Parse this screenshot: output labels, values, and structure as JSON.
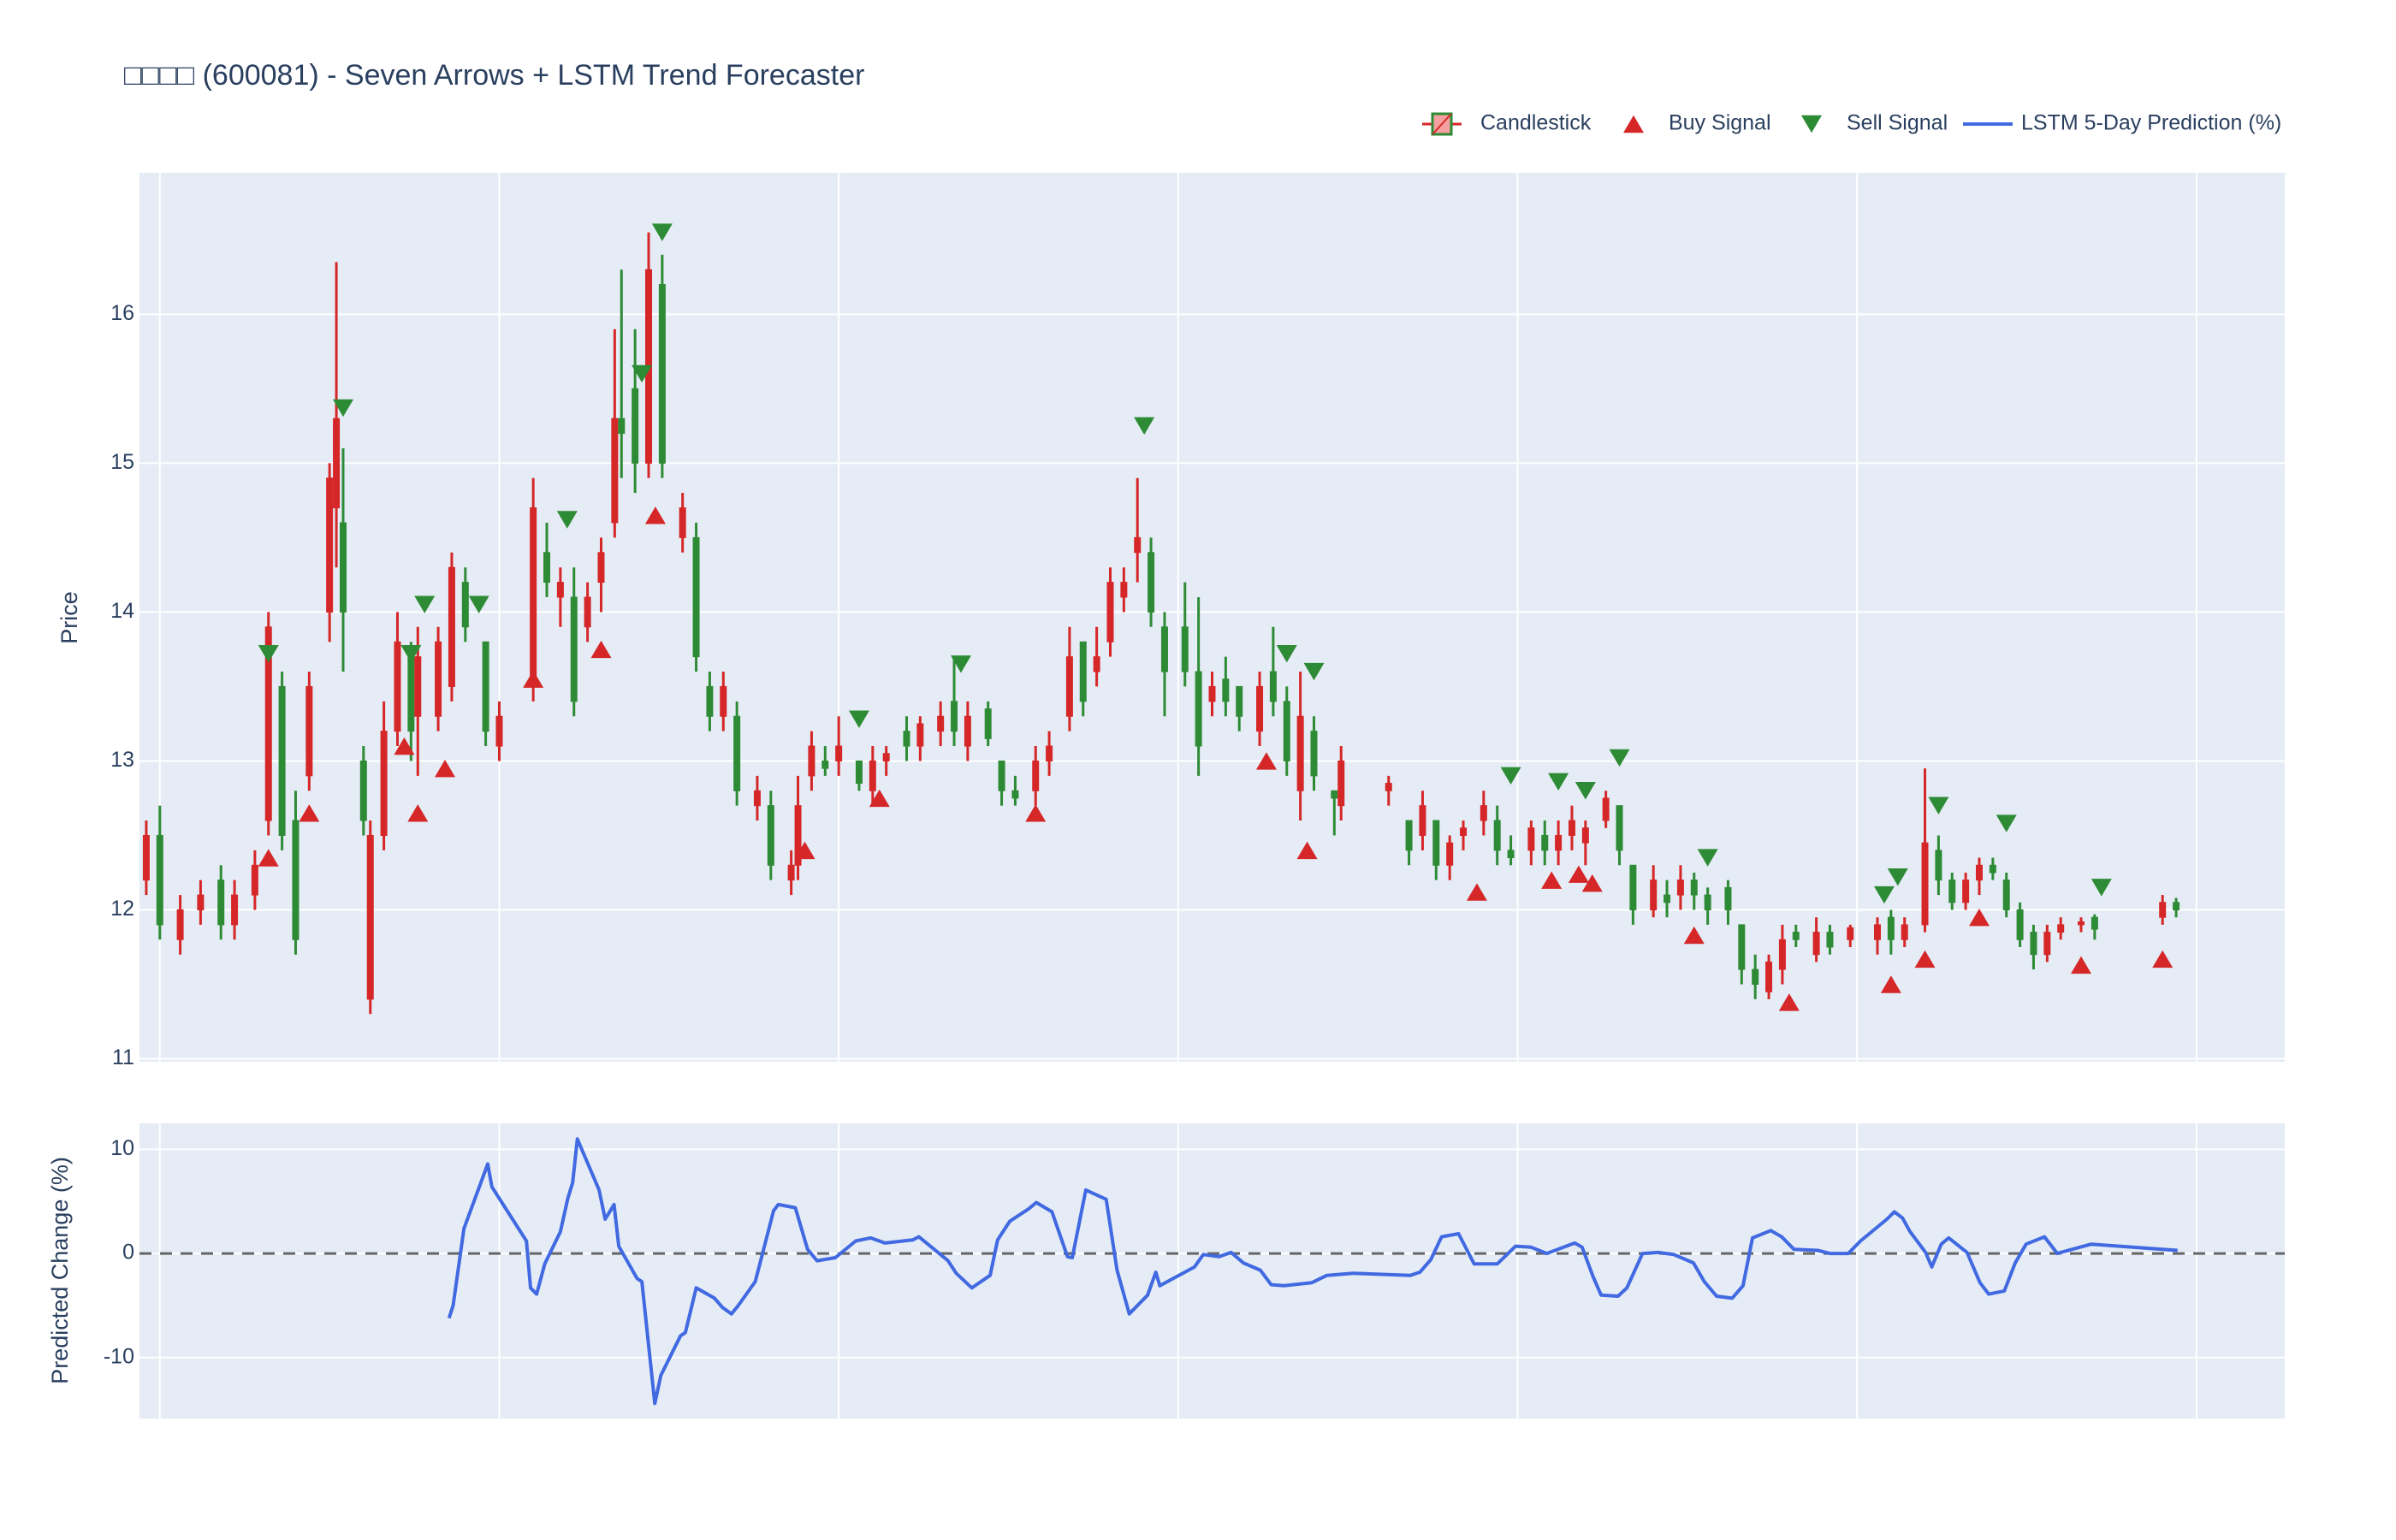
{
  "chart_data": [
    {
      "type": "candlestick",
      "title": "□□□□ (600081) - Seven Arrows + LSTM Trend Forecaster",
      "y_label": "Price",
      "name": "Candlestick",
      "increasing_color": "#d62728",
      "decreasing_color": "#2e8b35",
      "legend": "top-right",
      "grid": true,
      "show_xtick_labels": false,
      "xlim": [
        -3,
        313
      ],
      "xticks": [
        0,
        50,
        100,
        150,
        200,
        250,
        300
      ],
      "ylim": [
        10.98,
        16.95
      ],
      "yticks": [
        11,
        12,
        13,
        14,
        15,
        16
      ],
      "x": [
        -2,
        0,
        3,
        6,
        9,
        11,
        14,
        16,
        18,
        20,
        22,
        25,
        26,
        27,
        30,
        31,
        33,
        35,
        37,
        38,
        41,
        43,
        45,
        48,
        50,
        55,
        57,
        59,
        61,
        63,
        65,
        67,
        68,
        70,
        72,
        74,
        77,
        79,
        81,
        83,
        85,
        88,
        90,
        93,
        94,
        96,
        98,
        100,
        103,
        105,
        107,
        110,
        112,
        115,
        117,
        119,
        122,
        124,
        126,
        129,
        131,
        134,
        136,
        138,
        140,
        142,
        144,
        146,
        148,
        151,
        153,
        155,
        157,
        159,
        162,
        164,
        166,
        168,
        170,
        173,
        174,
        181,
        184,
        186,
        188,
        190,
        192,
        195,
        197,
        199,
        202,
        204,
        206,
        208,
        210,
        213,
        215,
        217,
        220,
        222,
        224,
        226,
        228,
        231,
        233,
        235,
        237,
        239,
        241,
        244,
        246,
        249,
        253,
        255,
        257,
        260,
        262,
        264,
        266,
        268,
        270,
        272,
        274,
        276,
        278,
        280,
        283,
        285,
        295,
        297
      ],
      "open": [
        12.2,
        12.5,
        11.8,
        12.0,
        12.2,
        11.9,
        12.1,
        12.6,
        13.5,
        12.6,
        12.9,
        14.0,
        14.7,
        14.6,
        13.0,
        11.4,
        12.5,
        13.2,
        13.7,
        13.3,
        13.3,
        13.5,
        14.2,
        13.8,
        13.1,
        13.5,
        14.4,
        14.1,
        14.1,
        13.9,
        14.2,
        14.6,
        15.3,
        15.5,
        15.0,
        16.2,
        14.5,
        14.5,
        13.5,
        13.3,
        13.3,
        12.7,
        12.7,
        12.2,
        12.3,
        12.9,
        13.0,
        13.0,
        13.0,
        12.8,
        13.0,
        13.2,
        13.1,
        13.2,
        13.4,
        13.1,
        13.35,
        13.0,
        12.8,
        12.8,
        13.0,
        13.3,
        13.8,
        13.6,
        13.8,
        14.1,
        14.4,
        14.4,
        13.9,
        13.9,
        13.6,
        13.4,
        13.55,
        13.5,
        13.2,
        13.6,
        13.4,
        12.8,
        13.2,
        12.8,
        12.7,
        12.8,
        12.6,
        12.5,
        12.6,
        12.3,
        12.5,
        12.6,
        12.6,
        12.4,
        12.4,
        12.5,
        12.4,
        12.5,
        12.45,
        12.6,
        12.7,
        12.3,
        12.0,
        12.1,
        12.1,
        12.2,
        12.1,
        12.15,
        11.9,
        11.6,
        11.45,
        11.6,
        11.85,
        11.7,
        11.85,
        11.8,
        11.8,
        11.95,
        11.8,
        11.9,
        12.4,
        12.2,
        12.05,
        12.2,
        12.3,
        12.2,
        12.0,
        11.85,
        11.7,
        11.85,
        11.9,
        11.95,
        11.95,
        12.05
      ],
      "high": [
        12.6,
        12.7,
        12.1,
        12.2,
        12.3,
        12.2,
        12.4,
        14.0,
        13.6,
        12.8,
        13.6,
        15.0,
        16.35,
        15.1,
        13.1,
        12.6,
        13.4,
        14.0,
        13.8,
        13.9,
        13.9,
        14.4,
        14.3,
        13.8,
        13.4,
        14.9,
        14.6,
        14.3,
        14.3,
        14.2,
        14.5,
        15.9,
        16.3,
        15.9,
        16.55,
        16.4,
        14.8,
        14.6,
        13.6,
        13.6,
        13.4,
        12.9,
        12.8,
        12.4,
        12.9,
        13.2,
        13.1,
        13.3,
        13.0,
        13.1,
        13.1,
        13.3,
        13.3,
        13.4,
        13.7,
        13.4,
        13.4,
        13.0,
        12.9,
        13.1,
        13.2,
        13.9,
        13.8,
        13.9,
        14.3,
        14.3,
        14.9,
        14.5,
        14.0,
        14.2,
        14.1,
        13.6,
        13.7,
        13.5,
        13.6,
        13.9,
        13.5,
        13.6,
        13.3,
        12.8,
        13.1,
        12.9,
        12.6,
        12.8,
        12.6,
        12.5,
        12.6,
        12.8,
        12.7,
        12.5,
        12.6,
        12.6,
        12.6,
        12.7,
        12.6,
        12.8,
        12.7,
        12.3,
        12.3,
        12.2,
        12.3,
        12.25,
        12.15,
        12.2,
        11.9,
        11.7,
        11.7,
        11.9,
        11.9,
        11.95,
        11.9,
        11.9,
        11.95,
        12.0,
        11.95,
        12.95,
        12.5,
        12.25,
        12.25,
        12.35,
        12.35,
        12.25,
        12.05,
        11.9,
        11.9,
        11.95,
        11.95,
        11.97,
        12.1,
        12.08
      ],
      "low": [
        12.1,
        11.8,
        11.7,
        11.9,
        11.8,
        11.8,
        12.0,
        12.5,
        12.4,
        11.7,
        12.8,
        13.8,
        14.3,
        13.6,
        12.5,
        11.3,
        12.4,
        13.1,
        13.0,
        12.9,
        13.2,
        13.4,
        13.8,
        13.1,
        13.0,
        13.4,
        14.1,
        13.9,
        13.3,
        13.8,
        14.0,
        14.5,
        14.9,
        14.8,
        14.9,
        14.9,
        14.4,
        13.6,
        13.2,
        13.2,
        12.7,
        12.6,
        12.2,
        12.1,
        12.2,
        12.8,
        12.9,
        12.9,
        12.8,
        12.7,
        12.9,
        13.0,
        13.0,
        13.1,
        13.1,
        13.0,
        13.1,
        12.7,
        12.7,
        12.7,
        12.9,
        13.2,
        13.3,
        13.5,
        13.7,
        14.0,
        14.2,
        13.9,
        13.3,
        13.5,
        12.9,
        13.3,
        13.3,
        13.2,
        13.1,
        13.3,
        12.9,
        12.6,
        12.8,
        12.5,
        12.6,
        12.7,
        12.3,
        12.4,
        12.2,
        12.2,
        12.4,
        12.5,
        12.3,
        12.3,
        12.3,
        12.3,
        12.3,
        12.4,
        12.3,
        12.55,
        12.3,
        11.9,
        11.95,
        11.95,
        12.0,
        12.0,
        11.9,
        11.9,
        11.5,
        11.4,
        11.4,
        11.5,
        11.75,
        11.65,
        11.7,
        11.75,
        11.7,
        11.7,
        11.75,
        11.85,
        12.1,
        12.0,
        12.0,
        12.1,
        12.2,
        11.95,
        11.75,
        11.6,
        11.65,
        11.8,
        11.85,
        11.8,
        11.9,
        11.95
      ],
      "close": [
        12.5,
        11.9,
        12.0,
        12.1,
        11.9,
        12.1,
        12.3,
        13.9,
        12.5,
        11.8,
        13.5,
        14.9,
        15.3,
        14.0,
        12.6,
        12.5,
        13.2,
        13.8,
        13.2,
        13.7,
        13.8,
        14.3,
        13.9,
        13.2,
        13.3,
        14.7,
        14.2,
        14.2,
        13.4,
        14.1,
        14.4,
        15.3,
        15.2,
        15.0,
        16.3,
        15.0,
        14.7,
        13.7,
        13.3,
        13.5,
        12.8,
        12.8,
        12.3,
        12.3,
        12.7,
        13.1,
        12.95,
        13.1,
        12.85,
        13.0,
        13.05,
        13.1,
        13.25,
        13.3,
        13.2,
        13.3,
        13.15,
        12.8,
        12.75,
        13.0,
        13.1,
        13.7,
        13.4,
        13.7,
        14.2,
        14.2,
        14.5,
        14.0,
        13.6,
        13.6,
        13.1,
        13.5,
        13.4,
        13.3,
        13.5,
        13.4,
        13.0,
        13.3,
        12.9,
        12.75,
        13.0,
        12.85,
        12.4,
        12.7,
        12.3,
        12.45,
        12.55,
        12.7,
        12.4,
        12.35,
        12.55,
        12.4,
        12.5,
        12.6,
        12.55,
        12.75,
        12.4,
        12.0,
        12.2,
        12.05,
        12.2,
        12.1,
        12.0,
        12.0,
        11.6,
        11.5,
        11.65,
        11.8,
        11.8,
        11.85,
        11.75,
        11.88,
        11.9,
        11.8,
        11.9,
        12.45,
        12.2,
        12.05,
        12.2,
        12.3,
        12.25,
        12.0,
        11.8,
        11.7,
        11.85,
        11.9,
        11.92,
        11.87,
        12.05,
        12.0
      ],
      "signals": [
        {
          "name": "Buy Signal",
          "color": "#d62728",
          "marker": "triangle-up",
          "x": [
            16,
            22,
            36,
            38,
            42,
            55,
            65,
            73,
            95,
            106,
            129,
            163,
            169,
            194,
            205,
            209,
            211,
            226,
            240,
            255,
            260,
            268,
            283,
            295
          ],
          "y": [
            12.35,
            12.65,
            13.1,
            12.65,
            12.95,
            13.55,
            13.75,
            14.65,
            12.4,
            12.75,
            12.65,
            13.0,
            12.4,
            12.12,
            12.2,
            12.24,
            12.18,
            11.83,
            11.38,
            11.5,
            11.67,
            11.95,
            11.63,
            11.67
          ]
        },
        {
          "name": "Sell Signal",
          "color": "#2e8b35",
          "marker": "triangle-down",
          "x": [
            16,
            27,
            37,
            39,
            47,
            60,
            71,
            74,
            103,
            118,
            145,
            166,
            170,
            199,
            206,
            210,
            215,
            228,
            254,
            256,
            262,
            272,
            286
          ],
          "y": [
            13.72,
            15.37,
            13.72,
            14.05,
            14.05,
            14.62,
            15.6,
            16.55,
            13.28,
            13.65,
            15.25,
            13.72,
            13.6,
            12.9,
            12.86,
            12.8,
            13.02,
            12.35,
            12.1,
            12.22,
            12.7,
            12.58,
            12.15
          ]
        }
      ]
    },
    {
      "type": "line",
      "y_label": "Predicted Change (%)",
      "grid": true,
      "show_xtick_labels": false,
      "hline": 0,
      "xlim": [
        -3,
        313
      ],
      "xticks": [
        0,
        50,
        100,
        150,
        200,
        250,
        300
      ],
      "ylim": [
        -15.85,
        12.5
      ],
      "yticks": [
        -10,
        0,
        10
      ],
      "series": [
        {
          "name": "LSTM 5-Day Prediction (%)",
          "color": "#4169e1",
          "x": [
            42.6,
            43.2,
            44.8,
            48.3,
            48.9,
            54.0,
            54.6,
            55.5,
            56.7,
            59.0,
            60.1,
            60.8,
            61.5,
            64.7,
            65.6,
            66.9,
            67.6,
            70.3,
            71.0,
            72.9,
            73.8,
            76.7,
            77.4,
            79.0,
            81.7,
            82.9,
            84.2,
            85.2,
            87.7,
            90.4,
            91.1,
            93.6,
            95.4,
            96.8,
            99.5,
            102.5,
            104.7,
            106.8,
            110.9,
            111.8,
            116.1,
            117.3,
            119.6,
            122.3,
            123.4,
            125.2,
            128.0,
            129.1,
            131.4,
            133.7,
            134.4,
            136.4,
            139.4,
            141.0,
            142.8,
            145.5,
            146.7,
            147.3,
            152.4,
            153.7,
            156.0,
            157.8,
            159.6,
            162.1,
            163.7,
            165.6,
            169.7,
            171.9,
            175.8,
            184.2,
            185.6,
            187.2,
            188.8,
            191.3,
            193.6,
            197.0,
            199.7,
            202.0,
            204.3,
            208.4,
            209.5,
            211.1,
            212.3,
            214.8,
            216.1,
            218.4,
            220.7,
            223.0,
            225.9,
            227.5,
            229.3,
            231.6,
            233.2,
            234.6,
            237.3,
            238.9,
            240.7,
            244.2,
            246.0,
            248.7,
            250.5,
            254.4,
            255.5,
            256.7,
            257.8,
            260.1,
            261.0,
            262.4,
            263.5,
            266.2,
            268.1,
            269.4,
            271.7,
            273.3,
            274.9,
            277.6,
            279.5,
            281.7,
            284.5,
            297.2
          ],
          "values": [
            -6.2,
            -5.0,
            2.4,
            8.6,
            6.4,
            1.2,
            -3.3,
            -3.9,
            -1.0,
            2.1,
            5.3,
            6.8,
            11.0,
            6.1,
            3.3,
            4.7,
            0.7,
            -2.4,
            -2.7,
            -14.4,
            -11.7,
            -7.9,
            -7.6,
            -3.3,
            -4.3,
            -5.2,
            -5.8,
            -5.0,
            -2.7,
            4.1,
            4.7,
            4.4,
            0.4,
            -0.7,
            -0.4,
            1.2,
            1.5,
            1.0,
            1.3,
            1.6,
            -0.7,
            -1.9,
            -3.3,
            -2.1,
            1.3,
            3.1,
            4.3,
            4.9,
            4.0,
            -0.3,
            -0.4,
            6.1,
            5.2,
            -1.6,
            -5.8,
            -4.0,
            -1.8,
            -3.1,
            -1.3,
            -0.1,
            -0.3,
            0.1,
            -0.9,
            -1.6,
            -3.0,
            -3.1,
            -2.8,
            -2.1,
            -1.9,
            -2.1,
            -1.8,
            -0.6,
            1.6,
            1.9,
            -1.0,
            -1.0,
            0.7,
            0.6,
            0.0,
            1.0,
            0.6,
            -2.2,
            -4.0,
            -4.1,
            -3.3,
            0.0,
            0.1,
            -0.1,
            -0.9,
            -2.7,
            -4.1,
            -4.3,
            -3.1,
            1.5,
            2.2,
            1.6,
            0.4,
            0.3,
            0.0,
            0.0,
            1.2,
            3.3,
            4.0,
            3.4,
            2.1,
            0.1,
            -1.3,
            0.9,
            1.5,
            0.1,
            -2.8,
            -3.9,
            -3.6,
            -0.9,
            0.9,
            1.6,
            0.0,
            0.4,
            0.9,
            0.3
          ]
        }
      ]
    }
  ]
}
